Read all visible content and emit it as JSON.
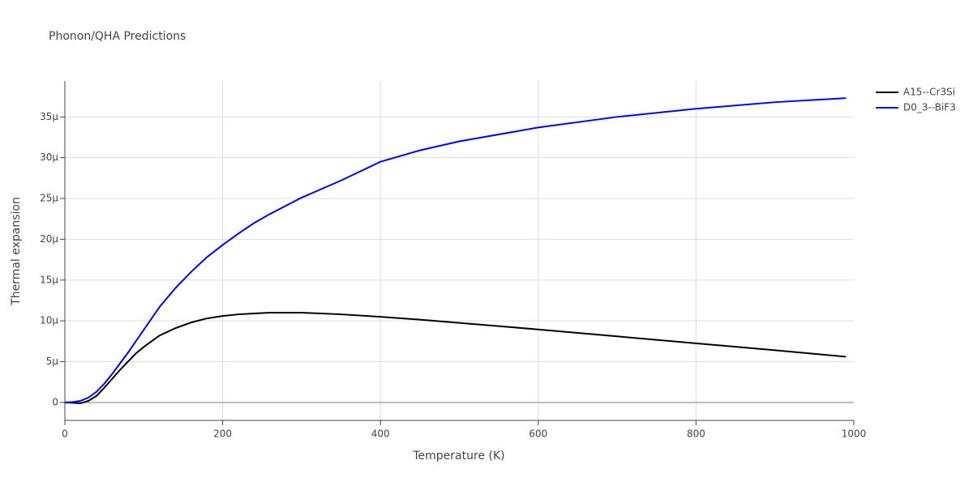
{
  "chart_data": {
    "type": "line",
    "title": "Phonon/QHA Predictions",
    "x_label": "Temperature (K)",
    "y_label": "Thermal expansion",
    "x": [
      0,
      10,
      20,
      30,
      40,
      50,
      60,
      70,
      80,
      90,
      100,
      120,
      140,
      160,
      180,
      200,
      220,
      240,
      260,
      280,
      300,
      350,
      400,
      450,
      500,
      600,
      700,
      800,
      900,
      990
    ],
    "series": [
      {
        "name": "A15--Cr3Si",
        "color": "#000000",
        "values": [
          0,
          -5e-08,
          -1e-07,
          2e-07,
          8e-07,
          1.8e-06,
          2.9e-06,
          4e-06,
          5e-06,
          6e-06,
          6.8e-06,
          8.2e-06,
          9.1e-06,
          9.8e-06,
          1.03e-05,
          1.06e-05,
          1.08e-05,
          1.09e-05,
          1.1e-05,
          1.1e-05,
          1.1e-05,
          1.08e-05,
          1.05e-05,
          1.015e-05,
          9.75e-06,
          8.95e-06,
          8.1e-06,
          7.25e-06,
          6.4e-06,
          5.6e-06
        ]
      },
      {
        "name": "D0_3--BiF3",
        "color": "#0000ff",
        "values": [
          0,
          5e-08,
          2e-07,
          6e-07,
          1.3e-06,
          2.3e-06,
          3.5e-06,
          4.8e-06,
          6.1e-06,
          7.5e-06,
          8.9e-06,
          1.17e-05,
          1.4e-05,
          1.6e-05,
          1.78e-05,
          1.93e-05,
          2.07e-05,
          2.2e-05,
          2.31e-05,
          2.41e-05,
          2.51e-05,
          2.72e-05,
          2.95e-05,
          3.09e-05,
          3.2e-05,
          3.37e-05,
          3.5e-05,
          3.6e-05,
          3.68e-05,
          3.73e-05
        ]
      }
    ],
    "xlim": [
      0,
      1000
    ],
    "xticks": [
      0,
      200,
      400,
      600,
      800,
      1000
    ],
    "ylim": [
      -2.2e-06,
      3.94e-05
    ],
    "yticks": [
      0,
      {
        "value": 5e-06,
        "label": "5μ"
      },
      {
        "value": 1e-05,
        "label": "10μ"
      },
      {
        "value": 1.5e-05,
        "label": "15μ"
      },
      {
        "value": 2e-05,
        "label": "20μ"
      },
      {
        "value": 2.5e-05,
        "label": "25μ"
      },
      {
        "value": 3e-05,
        "label": "30μ"
      },
      {
        "value": 3.5e-05,
        "label": "35μ"
      }
    ],
    "grid": true,
    "legend": "outside-right"
  }
}
